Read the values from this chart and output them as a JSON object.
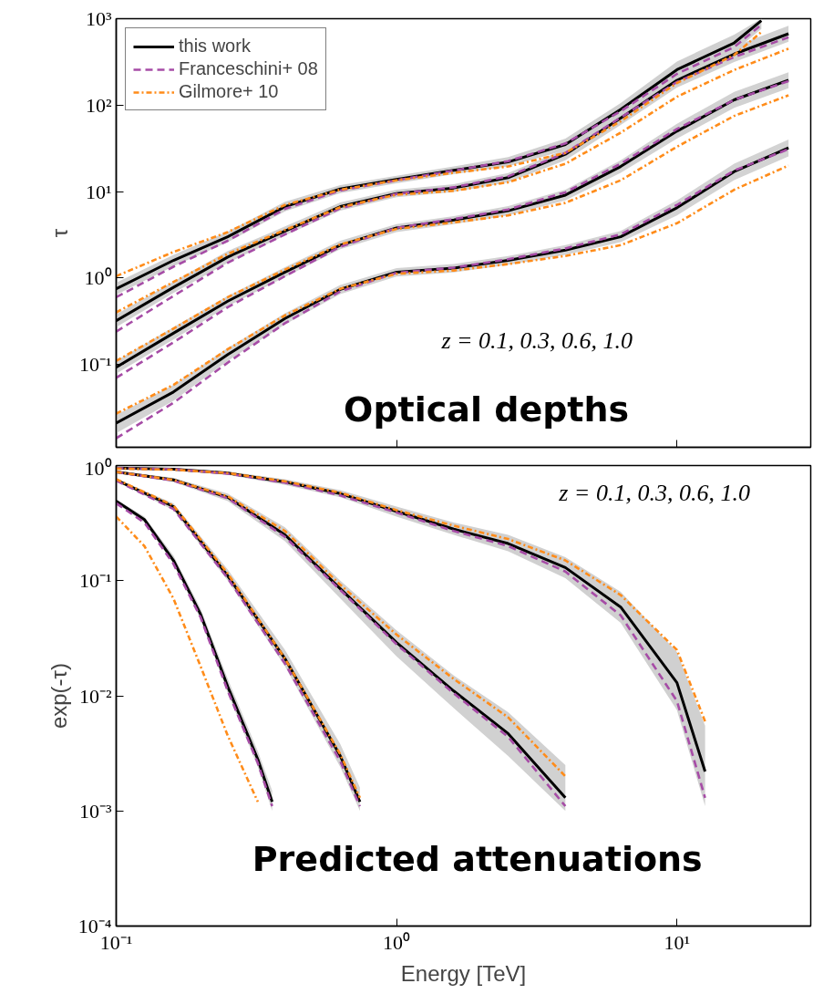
{
  "chart_data": [
    {
      "type": "line",
      "ylabel": "τ",
      "log": "xy",
      "grid": false,
      "legend": "top left",
      "tick_labels": "y",
      "xlim": [
        0.1,
        30
      ],
      "ylim": [
        0.011,
        1000
      ],
      "xticks": [
        {
          "value": 0.1,
          "label": null
        },
        {
          "value": 1,
          "label": null
        },
        {
          "value": 10,
          "label": null
        }
      ],
      "yticks": [
        {
          "value": 0.1,
          "label": "10⁻¹"
        },
        {
          "value": 1,
          "label": "10⁰"
        },
        {
          "value": 10,
          "label": "10¹"
        },
        {
          "value": 100,
          "label": "10²"
        },
        {
          "value": 1000,
          "label": "10³"
        }
      ],
      "annotations": [
        "z = 0.1, 0.3, 0.6, 1.0",
        "Optical depths"
      ],
      "x": [
        0.1,
        0.16,
        0.25,
        0.4,
        0.63,
        1,
        1.6,
        2.5,
        4,
        6.3,
        10,
        16,
        25
      ],
      "series": [
        {
          "name": "this work",
          "color": "#000000",
          "line_style": "solid",
          "x": [
            0.1,
            0.16,
            0.25,
            0.4,
            0.63,
            1,
            1.6,
            2.5,
            4,
            6.3,
            10,
            16,
            20
          ],
          "values": [
            0.75,
            1.6,
            3.0,
            6.7,
            10.7,
            13.8,
            17.6,
            22,
            35,
            89,
            257,
            525,
            950
          ],
          "lower": [
            0.64,
            1.37,
            2.6,
            5.9,
            9.6,
            12.5,
            15.9,
            19.5,
            30,
            74,
            205,
            420,
            760
          ],
          "upper": [
            0.88,
            1.85,
            3.45,
            7.6,
            11.9,
            15.2,
            19.5,
            25,
            41,
            106,
            320,
            655,
            1000
          ]
        },
        {
          "color": "#000000",
          "line_style": "solid",
          "values": [
            0.32,
            0.78,
            1.75,
            3.5,
            6.7,
            9.5,
            11,
            14.5,
            27,
            71,
            194,
            390,
            670
          ],
          "lower": [
            0.27,
            0.67,
            1.5,
            3.1,
            6.0,
            8.6,
            9.9,
            12.8,
            23,
            59,
            160,
            315,
            540
          ],
          "upper": [
            0.38,
            0.91,
            2.05,
            3.95,
            7.5,
            10.5,
            12.2,
            16.4,
            31,
            85,
            235,
            480,
            830
          ]
        },
        {
          "color": "#000000",
          "line_style": "solid",
          "values": [
            0.093,
            0.23,
            0.54,
            1.17,
            2.4,
            3.8,
            4.7,
            6.0,
            9.1,
            19.5,
            50,
            115,
            195
          ],
          "lower": [
            0.078,
            0.195,
            0.47,
            1.03,
            2.15,
            3.4,
            4.2,
            5.3,
            7.9,
            16.5,
            41,
            93,
            157
          ],
          "upper": [
            0.11,
            0.27,
            0.62,
            1.33,
            2.7,
            4.2,
            5.2,
            6.8,
            10.5,
            23,
            61,
            142,
            240
          ]
        },
        {
          "color": "#000000",
          "line_style": "solid",
          "values": [
            0.021,
            0.048,
            0.13,
            0.34,
            0.74,
            1.17,
            1.3,
            1.6,
            2.1,
            3.0,
            6.5,
            17,
            32
          ],
          "lower": [
            0.016,
            0.038,
            0.11,
            0.29,
            0.65,
            1.04,
            1.16,
            1.42,
            1.85,
            2.6,
            5.3,
            13.6,
            25.5
          ],
          "upper": [
            0.026,
            0.058,
            0.155,
            0.39,
            0.83,
            1.3,
            1.45,
            1.8,
            2.4,
            3.5,
            7.9,
            21,
            40
          ]
        },
        {
          "name": "Franceschini+ 08",
          "color": "#a64ca6",
          "line_style": "dashed",
          "x": [
            0.1,
            0.16,
            0.25,
            0.4,
            0.63,
            1,
            1.6,
            2.5,
            4,
            6.3,
            10,
            16,
            20
          ],
          "values": [
            0.6,
            1.35,
            2.7,
            6.3,
            10.3,
            13.5,
            17.5,
            22.5,
            36,
            85,
            230,
            470,
            850
          ]
        },
        {
          "color": "#a64ca6",
          "line_style": "dashed",
          "values": [
            0.24,
            0.62,
            1.5,
            3.2,
            6.4,
            9.4,
            11.2,
            15,
            28,
            72,
            185,
            360,
            610
          ]
        },
        {
          "color": "#a64ca6",
          "line_style": "dashed",
          "values": [
            0.07,
            0.18,
            0.46,
            1.05,
            2.3,
            3.8,
            4.8,
            6.2,
            9.8,
            21,
            53,
            115,
            190
          ]
        },
        {
          "color": "#a64ca6",
          "line_style": "dashed",
          "values": [
            0.014,
            0.036,
            0.105,
            0.3,
            0.7,
            1.15,
            1.32,
            1.65,
            2.2,
            3.2,
            7,
            17.5,
            31
          ]
        },
        {
          "name": "Gilmore+ 10",
          "color": "#ff8c1a",
          "line_style": "dotted",
          "x": [
            0.1,
            0.16,
            0.25,
            0.4,
            0.63,
            1,
            1.6,
            2.5,
            4,
            6.3,
            10,
            16,
            20
          ],
          "values": [
            1.05,
            2.0,
            3.4,
            7.0,
            10.5,
            13.5,
            16.5,
            19.5,
            28,
            65,
            180,
            380,
            700
          ]
        },
        {
          "color": "#ff8c1a",
          "line_style": "dotted",
          "values": [
            0.4,
            0.9,
            1.9,
            3.6,
            6.6,
            9.2,
            10.2,
            12.8,
            21,
            48,
            125,
            255,
            450
          ]
        },
        {
          "color": "#ff8c1a",
          "line_style": "dotted",
          "values": [
            0.11,
            0.26,
            0.6,
            1.25,
            2.45,
            3.7,
            4.4,
            5.3,
            7.4,
            13.5,
            33,
            75,
            130
          ]
        },
        {
          "color": "#ff8c1a",
          "line_style": "dotted",
          "values": [
            0.027,
            0.058,
            0.15,
            0.37,
            0.75,
            1.12,
            1.22,
            1.45,
            1.8,
            2.4,
            4.3,
            10.5,
            20
          ]
        }
      ]
    },
    {
      "type": "line",
      "xlabel": "Energy [TeV]",
      "ylabel": "exp(-τ)",
      "log": "xy",
      "grid": false,
      "xlim": [
        0.1,
        30
      ],
      "ylim": [
        0.0001,
        1
      ],
      "xticks": [
        {
          "value": 0.1,
          "label": "10⁻¹"
        },
        {
          "value": 1,
          "label": "10⁰"
        },
        {
          "value": 10,
          "label": "10¹"
        }
      ],
      "yticks": [
        {
          "value": 0.0001,
          "label": "10⁻⁴"
        },
        {
          "value": 0.001,
          "label": "10⁻³"
        },
        {
          "value": 0.01,
          "label": "10⁻²"
        },
        {
          "value": 0.1,
          "label": "10⁻¹"
        },
        {
          "value": 1,
          "label": "10⁰"
        }
      ],
      "annotations": [
        "z = 0.1, 0.3, 0.6, 1.0",
        "Predicted attenuations"
      ],
      "series": [
        {
          "color": "#000000",
          "line_style": "solid",
          "x": [
            0.1,
            0.16,
            0.25,
            0.4,
            0.63,
            1,
            1.6,
            2.5,
            4,
            6.3,
            10,
            12.6
          ],
          "values": [
            0.95,
            0.93,
            0.86,
            0.72,
            0.57,
            0.4,
            0.28,
            0.21,
            0.13,
            0.059,
            0.013,
            0.0022
          ],
          "lower": [
            0.94,
            0.91,
            0.83,
            0.68,
            0.53,
            0.36,
            0.25,
            0.18,
            0.105,
            0.043,
            0.0075,
            0.0011
          ],
          "upper": [
            0.96,
            0.95,
            0.89,
            0.76,
            0.61,
            0.44,
            0.32,
            0.25,
            0.16,
            0.08,
            0.024,
            0.0055
          ]
        },
        {
          "color": "#000000",
          "line_style": "solid",
          "x": [
            0.1,
            0.16,
            0.25,
            0.4,
            0.63,
            1,
            1.6,
            2.5,
            4
          ],
          "values": [
            0.88,
            0.75,
            0.53,
            0.25,
            0.085,
            0.029,
            0.011,
            0.0047,
            0.0013
          ],
          "lower": [
            0.86,
            0.72,
            0.49,
            0.22,
            0.07,
            0.022,
            0.0078,
            0.003,
            0.001
          ],
          "upper": [
            0.9,
            0.78,
            0.57,
            0.29,
            0.1,
            0.037,
            0.015,
            0.0072,
            0.0025
          ]
        },
        {
          "color": "#000000",
          "line_style": "solid",
          "x": [
            0.1,
            0.16,
            0.25,
            0.4,
            0.63,
            0.74
          ],
          "values": [
            0.75,
            0.44,
            0.11,
            0.021,
            0.003,
            0.0012
          ],
          "lower": [
            0.73,
            0.41,
            0.1,
            0.018,
            0.0024,
            0.001
          ],
          "upper": [
            0.77,
            0.47,
            0.125,
            0.025,
            0.0038,
            0.0016
          ]
        },
        {
          "color": "#000000",
          "line_style": "solid",
          "x": [
            0.1,
            0.126,
            0.16,
            0.2,
            0.25,
            0.32,
            0.36
          ],
          "values": [
            0.49,
            0.34,
            0.15,
            0.051,
            0.012,
            0.0028,
            0.0012
          ],
          "lower": [
            0.47,
            0.32,
            0.14,
            0.046,
            0.0105,
            0.0024,
            0.001
          ],
          "upper": [
            0.51,
            0.36,
            0.165,
            0.057,
            0.014,
            0.0033,
            0.0015
          ]
        },
        {
          "color": "#a64ca6",
          "line_style": "dashed",
          "x": [
            0.1,
            0.16,
            0.25,
            0.4,
            0.63,
            1,
            1.6,
            2.5,
            4,
            6.3,
            10,
            12.6
          ],
          "values": [
            0.95,
            0.93,
            0.85,
            0.71,
            0.55,
            0.39,
            0.27,
            0.2,
            0.12,
            0.05,
            0.009,
            0.0013
          ]
        },
        {
          "color": "#a64ca6",
          "line_style": "dashed",
          "x": [
            0.1,
            0.16,
            0.25,
            0.4,
            0.63,
            1,
            1.6,
            2.5,
            4
          ],
          "values": [
            0.88,
            0.74,
            0.52,
            0.24,
            0.083,
            0.028,
            0.0105,
            0.0044,
            0.0011
          ]
        },
        {
          "color": "#a64ca6",
          "line_style": "dashed",
          "x": [
            0.1,
            0.16,
            0.25,
            0.4,
            0.63,
            0.74
          ],
          "values": [
            0.74,
            0.42,
            0.105,
            0.019,
            0.0027,
            0.0011
          ]
        },
        {
          "color": "#a64ca6",
          "line_style": "dashed",
          "x": [
            0.1,
            0.126,
            0.16,
            0.2,
            0.25,
            0.32,
            0.36
          ],
          "values": [
            0.47,
            0.32,
            0.14,
            0.048,
            0.011,
            0.0026,
            0.0011
          ]
        },
        {
          "color": "#ff8c1a",
          "line_style": "dotted",
          "x": [
            0.1,
            0.16,
            0.25,
            0.4,
            0.63,
            1,
            1.6,
            2.5,
            4,
            6.3,
            10,
            12.6
          ],
          "values": [
            0.94,
            0.92,
            0.86,
            0.73,
            0.58,
            0.41,
            0.3,
            0.23,
            0.15,
            0.075,
            0.025,
            0.006
          ]
        },
        {
          "color": "#ff8c1a",
          "line_style": "dotted",
          "x": [
            0.1,
            0.16,
            0.25,
            0.4,
            0.63,
            1,
            1.6,
            2.5,
            4
          ],
          "values": [
            0.88,
            0.75,
            0.54,
            0.27,
            0.092,
            0.034,
            0.014,
            0.0065,
            0.002
          ]
        },
        {
          "color": "#ff8c1a",
          "line_style": "dotted",
          "x": [
            0.1,
            0.16,
            0.25,
            0.4,
            0.63,
            0.74
          ],
          "values": [
            0.76,
            0.45,
            0.115,
            0.021,
            0.0031,
            0.0013
          ]
        },
        {
          "color": "#ff8c1a",
          "line_style": "dotted",
          "x": [
            0.1,
            0.126,
            0.16,
            0.2,
            0.25,
            0.32
          ],
          "values": [
            0.36,
            0.2,
            0.07,
            0.018,
            0.0045,
            0.0012
          ]
        }
      ]
    }
  ]
}
